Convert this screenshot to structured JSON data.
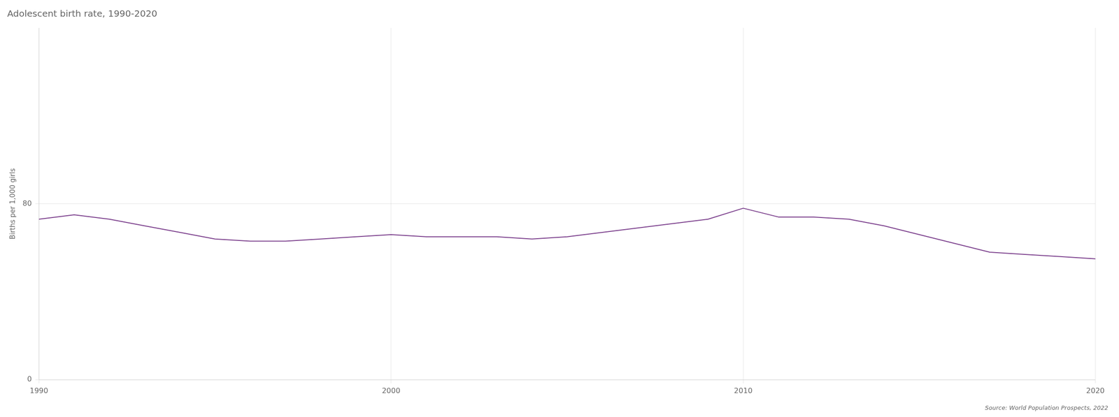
{
  "chart_data": {
    "type": "line",
    "title": "Adolescent birth rate, 1990-2020",
    "ylabel": "Births per 1,000 girls",
    "source": "Source: World Population Prospects, 2022",
    "x": [
      1990,
      1991,
      1992,
      1993,
      1994,
      1995,
      1996,
      1997,
      1998,
      1999,
      2000,
      2001,
      2002,
      2003,
      2004,
      2005,
      2006,
      2007,
      2008,
      2009,
      2010,
      2011,
      2012,
      2013,
      2014,
      2015,
      2016,
      2017,
      2018,
      2019,
      2020
    ],
    "values": [
      73,
      75,
      73,
      70,
      67,
      64,
      63,
      63,
      64,
      65,
      66,
      65,
      65,
      65,
      64,
      65,
      67,
      69,
      71,
      73,
      78,
      74,
      74,
      73,
      70,
      66,
      62,
      58,
      57,
      56,
      55
    ],
    "color": "#7b3f8c",
    "xlim": [
      1990,
      2020
    ],
    "ylim": [
      0,
      160
    ],
    "xticks": [
      1990,
      2000,
      2010,
      2020
    ],
    "yticks": [
      0,
      80
    ],
    "grid": true
  }
}
